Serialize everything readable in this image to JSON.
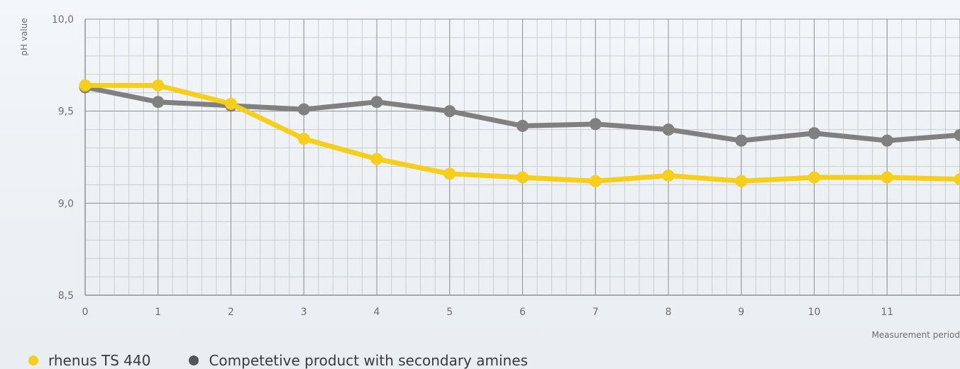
{
  "chart_data": {
    "type": "line",
    "title": "",
    "xlabel": "Measurement period",
    "ylabel": "pH value",
    "xlim": [
      0,
      12
    ],
    "ylim": [
      8.5,
      10.0
    ],
    "x_ticks": [
      0,
      1,
      2,
      3,
      4,
      5,
      6,
      7,
      8,
      9,
      10,
      11
    ],
    "y_ticks": [
      {
        "value": 8.5,
        "label": "8,5"
      },
      {
        "value": 9.0,
        "label": "9,0"
      },
      {
        "value": 9.5,
        "label": "9,5"
      },
      {
        "value": 10.0,
        "label": "10,0"
      }
    ],
    "grid": true,
    "legend_position": "bottom-left",
    "x": [
      0,
      1,
      2,
      3,
      4,
      5,
      6,
      7,
      8,
      9,
      10,
      11,
      12
    ],
    "series": [
      {
        "name": "Competetive product with secondary amines",
        "color": "#808080",
        "values": [
          9.63,
          9.55,
          9.53,
          9.51,
          9.55,
          9.5,
          9.42,
          9.43,
          9.4,
          9.34,
          9.38,
          9.34,
          9.37
        ]
      },
      {
        "name": "rhenus TS 440",
        "color": "#f5cf1b",
        "values": [
          9.64,
          9.64,
          9.54,
          9.35,
          9.24,
          9.16,
          9.14,
          9.12,
          9.15,
          9.12,
          9.14,
          9.14,
          9.13
        ]
      }
    ]
  }
}
